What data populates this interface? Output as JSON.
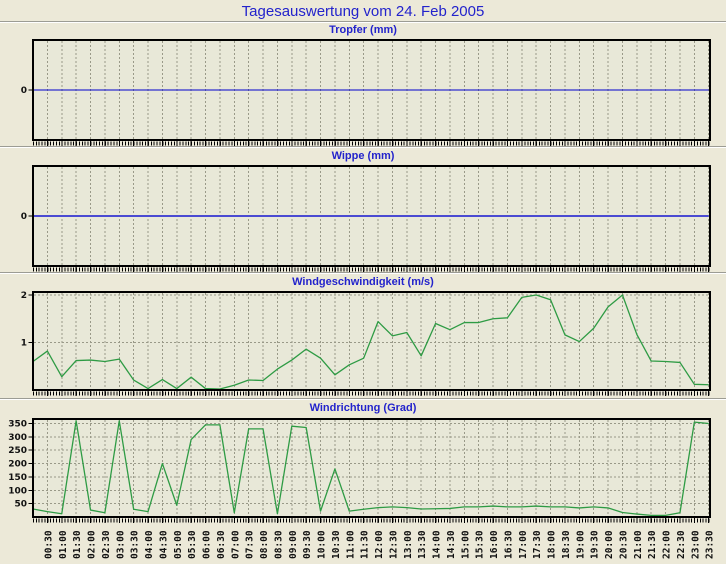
{
  "page": {
    "title": "Tagesauswertung vom 24. Feb 2005",
    "background": "#ece9d8",
    "plot_background": "#e8e8d8",
    "frame_color": "#000000",
    "grid_color": "#999988",
    "title_color": "#2323cc",
    "axis_label_color": "#111111"
  },
  "axis": {
    "x_labels": [
      "00:30",
      "01:00",
      "01:30",
      "02:00",
      "02:30",
      "03:00",
      "03:30",
      "04:00",
      "04:30",
      "05:00",
      "05:30",
      "06:00",
      "06:30",
      "07:00",
      "07:30",
      "08:00",
      "08:30",
      "09:00",
      "09:30",
      "10:00",
      "10:30",
      "11:00",
      "11:30",
      "12:00",
      "12:30",
      "13:00",
      "13:30",
      "14:00",
      "14:30",
      "15:00",
      "15:30",
      "16:00",
      "16:30",
      "17:00",
      "17:30",
      "18:00",
      "18:30",
      "19:00",
      "19:30",
      "20:00",
      "20:30",
      "21:00",
      "21:30",
      "22:00",
      "22:30",
      "23:00",
      "23:30"
    ]
  },
  "chart_data": [
    {
      "type": "line",
      "title": "Tropfer (mm)",
      "x_start": "00:00",
      "x_step_minutes": 30,
      "y_ticks": [
        0
      ],
      "ylim": [
        -1,
        1
      ],
      "grid": "vertical-only",
      "line_color": "#0000cb",
      "values": [
        0,
        0,
        0,
        0,
        0,
        0,
        0,
        0,
        0,
        0,
        0,
        0,
        0,
        0,
        0,
        0,
        0,
        0,
        0,
        0,
        0,
        0,
        0,
        0,
        0,
        0,
        0,
        0,
        0,
        0,
        0,
        0,
        0,
        0,
        0,
        0,
        0,
        0,
        0,
        0,
        0,
        0,
        0,
        0,
        0,
        0,
        0,
        0
      ]
    },
    {
      "type": "line",
      "title": "Wippe (mm)",
      "x_start": "00:00",
      "x_step_minutes": 30,
      "y_ticks": [
        0
      ],
      "ylim": [
        -1,
        1
      ],
      "grid": "vertical-only",
      "line_color": "#4a4ad2",
      "values": [
        0,
        0,
        0,
        0,
        0,
        0,
        0,
        0,
        0,
        0,
        0,
        0,
        0,
        0,
        0,
        0,
        0,
        0,
        0,
        0,
        0,
        0,
        0,
        0,
        0,
        0,
        0,
        0,
        0,
        0,
        0,
        0,
        0,
        0,
        0,
        0,
        0,
        0,
        0,
        0,
        0,
        0,
        0,
        0,
        0,
        0,
        0,
        0
      ]
    },
    {
      "type": "line",
      "title": "Windgeschwindigkeit (m/s)",
      "x_start": "00:00",
      "x_step_minutes": 30,
      "y_ticks": [
        1,
        2
      ],
      "ylim": [
        0,
        2.06
      ],
      "grid": "both",
      "line_color": "#2e9b44",
      "values": [
        0.6,
        0.82,
        0.28,
        0.62,
        0.63,
        0.6,
        0.65,
        0.21,
        0.03,
        0.22,
        0.03,
        0.27,
        0.03,
        0.02,
        0.1,
        0.21,
        0.2,
        0.44,
        0.63,
        0.86,
        0.67,
        0.32,
        0.53,
        0.67,
        1.44,
        1.14,
        1.21,
        0.72,
        1.4,
        1.27,
        1.42,
        1.42,
        1.5,
        1.52,
        1.95,
        2.0,
        1.9,
        1.16,
        1.02,
        1.3,
        1.75,
        2.0,
        1.17,
        0.61,
        0.6,
        0.58,
        0.12,
        0.11
      ]
    },
    {
      "type": "line",
      "title": "Windrichtung (Grad)",
      "x_start": "00:00",
      "x_step_minutes": 30,
      "y_ticks": [
        50,
        100,
        150,
        200,
        250,
        300,
        350
      ],
      "ylim": [
        0,
        367
      ],
      "grid": "both",
      "line_color": "#2e9b44",
      "values": [
        30,
        20,
        12,
        360,
        26,
        16,
        360,
        29,
        20,
        200,
        44,
        290,
        345,
        345,
        16,
        330,
        330,
        12,
        340,
        335,
        22,
        180,
        22,
        29,
        35,
        38,
        35,
        30,
        31,
        32,
        38,
        38,
        41,
        38,
        38,
        41,
        38,
        38,
        34,
        38,
        34,
        17,
        11,
        6,
        6,
        16,
        355,
        350
      ]
    }
  ]
}
